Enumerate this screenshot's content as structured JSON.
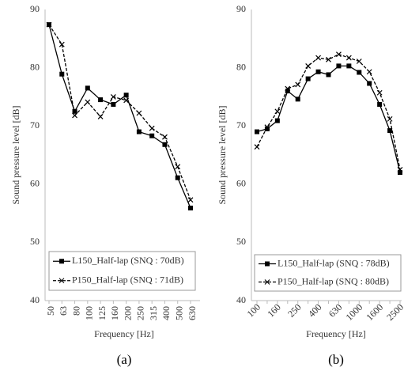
{
  "chart_data": [
    {
      "type": "line",
      "caption": "(a)",
      "xlabel": "Frequency [Hz]",
      "ylabel": "Sound pressure level [dB]",
      "categories": [
        "50",
        "63",
        "80",
        "100",
        "125",
        "160",
        "200",
        "250",
        "315",
        "400",
        "500",
        "630"
      ],
      "ylim": [
        40,
        90
      ],
      "yticks": [
        40,
        50,
        60,
        70,
        80,
        90
      ],
      "xtick_rotation": -90,
      "grid": false,
      "series": [
        {
          "name": "L150_Half-lap (SNQ : 70dB)",
          "color": "#000000",
          "marker": "square",
          "dashed": false,
          "values": [
            87.4,
            78.9,
            72.5,
            76.5,
            74.5,
            73.7,
            75.3,
            69,
            68.3,
            66.8,
            61.1,
            55.9
          ]
        },
        {
          "name": "P150_Half-lap (SNQ : 71dB)",
          "color": "#000000",
          "marker": "x",
          "dashed": true,
          "values": [
            87.4,
            84,
            71.8,
            74.1,
            71.6,
            75,
            74.4,
            72.2,
            69.6,
            68.1,
            63,
            57.3
          ]
        }
      ]
    },
    {
      "type": "line",
      "caption": "(b)",
      "xlabel": "Frequency [Hz]",
      "ylabel": "Sound pressure level [dB]",
      "categories": [
        "100",
        null,
        "160",
        null,
        "250",
        null,
        "400",
        null,
        "630",
        null,
        "1000",
        null,
        "1600",
        null,
        "2500"
      ],
      "ylim": [
        40,
        90
      ],
      "yticks": [
        40,
        50,
        60,
        70,
        80,
        90
      ],
      "xtick_rotation": -45,
      "grid": false,
      "series": [
        {
          "name": "L150_Half-lap (SNQ : 78dB)",
          "color": "#000000",
          "marker": "square",
          "dashed": false,
          "values": [
            69,
            69.5,
            70.9,
            76,
            74.6,
            78.1,
            79.3,
            78.8,
            80.3,
            80.3,
            79.2,
            77.3,
            73.7,
            69.2,
            62
          ]
        },
        {
          "name": "P150_Half-lap (SNQ : 80dB)",
          "color": "#000000",
          "marker": "x",
          "dashed": true,
          "values": [
            66.4,
            69.8,
            72.5,
            76.4,
            77.1,
            80.3,
            81.7,
            81.4,
            82.3,
            81.7,
            81.1,
            79.3,
            75.7,
            71.2,
            62.5
          ]
        }
      ]
    }
  ]
}
